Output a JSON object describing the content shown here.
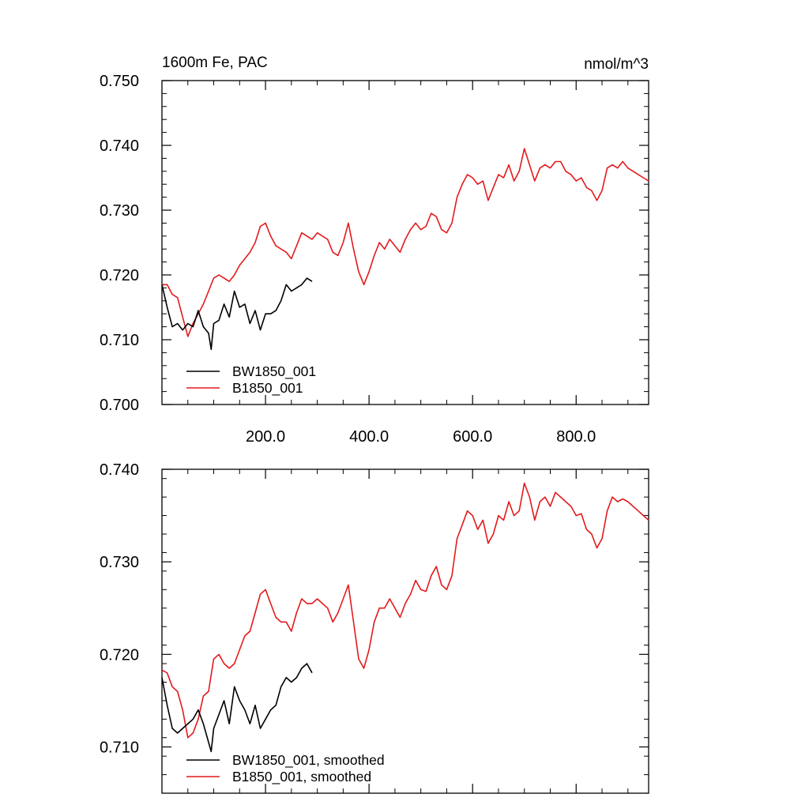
{
  "chart_data": [
    {
      "type": "line",
      "title": "1600m Fe, PAC",
      "units": "nmol/m^3",
      "xlim": [
        0,
        940
      ],
      "ylim": [
        0.7,
        0.75
      ],
      "x_ticks": [
        200,
        400,
        600,
        800
      ],
      "x_tick_labels": [
        "200.0",
        "400.0",
        "600.0",
        "800.0"
      ],
      "y_ticks": [
        0.7,
        0.71,
        0.72,
        0.73,
        0.74,
        0.75
      ],
      "y_tick_labels": [
        "0.700",
        "0.710",
        "0.720",
        "0.730",
        "0.740",
        "0.750"
      ],
      "legend_position": "bottom-left",
      "series": [
        {
          "name": "BW1850_001",
          "color": "#000000",
          "x": [
            0,
            10,
            20,
            30,
            40,
            50,
            60,
            70,
            80,
            90,
            95,
            100,
            110,
            120,
            130,
            140,
            150,
            160,
            170,
            180,
            190,
            200,
            210,
            220,
            230,
            240,
            250,
            260,
            270,
            280,
            290
          ],
          "y": [
            0.7185,
            0.715,
            0.712,
            0.7125,
            0.7115,
            0.7125,
            0.712,
            0.7145,
            0.712,
            0.711,
            0.7085,
            0.7125,
            0.713,
            0.7155,
            0.7135,
            0.7175,
            0.715,
            0.7155,
            0.7125,
            0.7145,
            0.7115,
            0.714,
            0.714,
            0.7145,
            0.716,
            0.7185,
            0.7175,
            0.718,
            0.7185,
            0.7195,
            0.719
          ]
        },
        {
          "name": "B1850_001",
          "color": "#e31a1c",
          "x": [
            0,
            10,
            20,
            30,
            40,
            50,
            60,
            70,
            80,
            90,
            100,
            110,
            120,
            130,
            140,
            150,
            160,
            170,
            180,
            190,
            200,
            210,
            220,
            230,
            240,
            250,
            260,
            270,
            280,
            290,
            300,
            310,
            320,
            330,
            340,
            350,
            360,
            370,
            380,
            390,
            400,
            410,
            420,
            430,
            440,
            450,
            460,
            470,
            480,
            490,
            500,
            510,
            520,
            530,
            540,
            550,
            560,
            570,
            580,
            590,
            600,
            610,
            620,
            630,
            640,
            650,
            660,
            670,
            680,
            690,
            700,
            710,
            720,
            730,
            740,
            750,
            760,
            770,
            780,
            790,
            800,
            810,
            820,
            830,
            840,
            850,
            860,
            870,
            880,
            890,
            900,
            910,
            920,
            930,
            940
          ],
          "y": [
            0.7185,
            0.7185,
            0.717,
            0.7165,
            0.7135,
            0.7105,
            0.7125,
            0.714,
            0.7155,
            0.7175,
            0.7195,
            0.72,
            0.7195,
            0.719,
            0.72,
            0.7215,
            0.7225,
            0.7235,
            0.725,
            0.7275,
            0.728,
            0.726,
            0.7245,
            0.724,
            0.7235,
            0.7225,
            0.7245,
            0.7265,
            0.726,
            0.7255,
            0.7265,
            0.726,
            0.7255,
            0.7235,
            0.723,
            0.725,
            0.728,
            0.724,
            0.7205,
            0.7185,
            0.7205,
            0.723,
            0.725,
            0.724,
            0.7255,
            0.7245,
            0.7235,
            0.7255,
            0.727,
            0.728,
            0.727,
            0.7275,
            0.7295,
            0.729,
            0.727,
            0.7265,
            0.728,
            0.732,
            0.734,
            0.7355,
            0.735,
            0.734,
            0.7345,
            0.7315,
            0.7335,
            0.7355,
            0.735,
            0.737,
            0.7345,
            0.736,
            0.7395,
            0.737,
            0.7345,
            0.7365,
            0.737,
            0.7365,
            0.7375,
            0.7375,
            0.736,
            0.7355,
            0.7345,
            0.735,
            0.7335,
            0.733,
            0.7315,
            0.733,
            0.7365,
            0.737,
            0.7365,
            0.7375,
            0.7365,
            0.736,
            0.7355,
            0.735,
            0.7345
          ]
        }
      ]
    },
    {
      "type": "line",
      "title": "",
      "units": "",
      "xlim": [
        0,
        940
      ],
      "ylim": [
        0.705,
        0.74
      ],
      "x_ticks": [
        200,
        400,
        600,
        800
      ],
      "x_tick_labels": [
        "",
        "",
        "",
        ""
      ],
      "y_ticks": [
        0.71,
        0.72,
        0.73,
        0.74
      ],
      "y_tick_labels": [
        "0.710",
        "0.720",
        "0.730",
        "0.740"
      ],
      "legend_position": "bottom-left",
      "series": [
        {
          "name": "BW1850_001, smoothed",
          "color": "#000000",
          "x": [
            0,
            10,
            20,
            30,
            40,
            50,
            60,
            70,
            80,
            90,
            95,
            100,
            110,
            120,
            130,
            140,
            150,
            160,
            170,
            180,
            190,
            200,
            210,
            220,
            230,
            240,
            250,
            260,
            270,
            280,
            290
          ],
          "y": [
            0.7175,
            0.7145,
            0.712,
            0.7115,
            0.712,
            0.7125,
            0.713,
            0.714,
            0.7125,
            0.7105,
            0.7095,
            0.712,
            0.7135,
            0.715,
            0.7125,
            0.7165,
            0.715,
            0.714,
            0.7125,
            0.7145,
            0.712,
            0.713,
            0.714,
            0.7145,
            0.7165,
            0.7175,
            0.717,
            0.7175,
            0.7185,
            0.719,
            0.718
          ]
        },
        {
          "name": "B1850_001, smoothed",
          "color": "#e31a1c",
          "x": [
            0,
            10,
            20,
            30,
            40,
            50,
            60,
            70,
            80,
            90,
            100,
            110,
            120,
            130,
            140,
            150,
            160,
            170,
            180,
            190,
            200,
            210,
            220,
            230,
            240,
            250,
            260,
            270,
            280,
            290,
            300,
            310,
            320,
            330,
            340,
            350,
            360,
            370,
            380,
            390,
            400,
            410,
            420,
            430,
            440,
            450,
            460,
            470,
            480,
            490,
            500,
            510,
            520,
            530,
            540,
            550,
            560,
            570,
            580,
            590,
            600,
            610,
            620,
            630,
            640,
            650,
            660,
            670,
            680,
            690,
            700,
            710,
            720,
            730,
            740,
            750,
            760,
            770,
            780,
            790,
            800,
            810,
            820,
            830,
            840,
            850,
            860,
            870,
            880,
            890,
            900,
            910,
            920,
            930,
            940
          ],
          "y": [
            0.7183,
            0.718,
            0.7165,
            0.716,
            0.714,
            0.711,
            0.7115,
            0.713,
            0.7155,
            0.716,
            0.7195,
            0.72,
            0.719,
            0.7185,
            0.719,
            0.7205,
            0.722,
            0.7225,
            0.7245,
            0.7265,
            0.727,
            0.7255,
            0.724,
            0.7235,
            0.7235,
            0.7225,
            0.7245,
            0.726,
            0.7255,
            0.7255,
            0.726,
            0.7255,
            0.725,
            0.7235,
            0.7245,
            0.726,
            0.7275,
            0.7235,
            0.7195,
            0.7185,
            0.7205,
            0.7235,
            0.725,
            0.725,
            0.726,
            0.725,
            0.724,
            0.7255,
            0.7265,
            0.728,
            0.727,
            0.7268,
            0.7285,
            0.7295,
            0.7275,
            0.727,
            0.7285,
            0.7325,
            0.734,
            0.7355,
            0.735,
            0.7335,
            0.7345,
            0.732,
            0.733,
            0.735,
            0.7345,
            0.7365,
            0.735,
            0.7355,
            0.7385,
            0.737,
            0.7345,
            0.7365,
            0.737,
            0.736,
            0.7375,
            0.737,
            0.7365,
            0.736,
            0.735,
            0.7352,
            0.7335,
            0.733,
            0.7315,
            0.7325,
            0.7355,
            0.737,
            0.7365,
            0.7368,
            0.7365,
            0.736,
            0.7355,
            0.735,
            0.7345
          ]
        }
      ]
    }
  ]
}
